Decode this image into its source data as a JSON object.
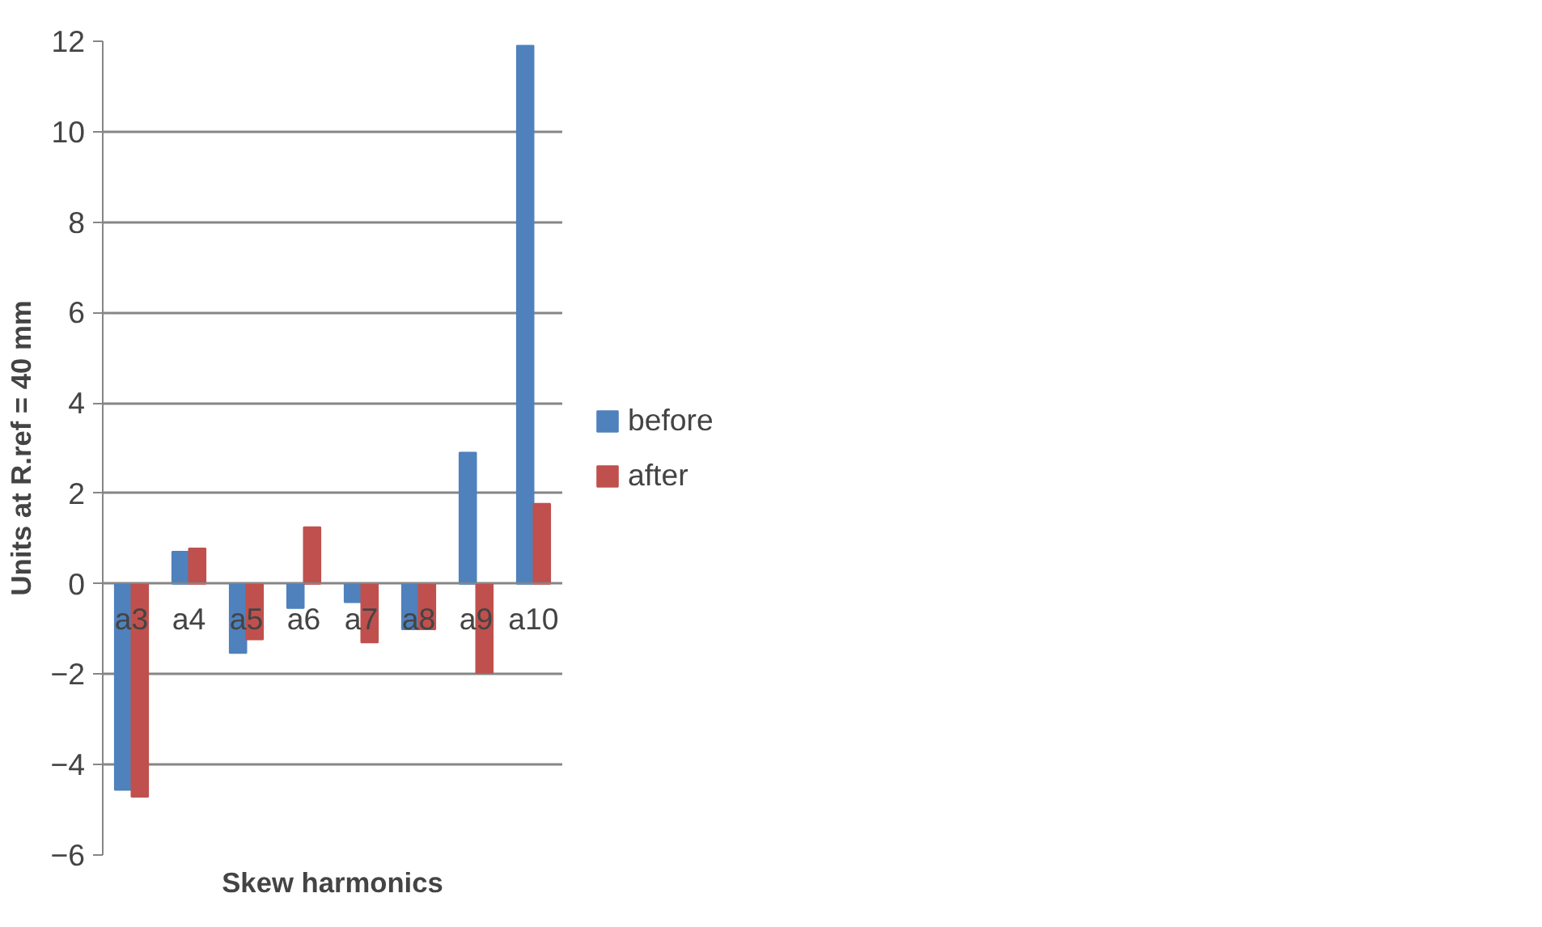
{
  "chart_data": {
    "type": "bar",
    "xlabel": "Skew harmonics",
    "ylabel": "Units at R.ref = 40 mm",
    "categories": [
      "a3",
      "a4",
      "a5",
      "a6",
      "a7",
      "a8",
      "a9",
      "a10"
    ],
    "series": [
      {
        "name": "before",
        "color": "#4f81bd",
        "values": [
          -4.56,
          0.71,
          -1.53,
          -0.54,
          -0.41,
          -1.01,
          2.9,
          11.9
        ]
      },
      {
        "name": "after",
        "color": "#c0504d",
        "values": [
          -4.71,
          0.78,
          -1.23,
          1.25,
          -1.3,
          -1.01,
          -1.97,
          1.77
        ]
      }
    ],
    "ylim": [
      -6,
      12
    ],
    "yticks": [
      -6,
      -4,
      -2,
      0,
      2,
      4,
      6,
      8,
      10,
      12
    ],
    "grid": "y",
    "legend": "right"
  }
}
